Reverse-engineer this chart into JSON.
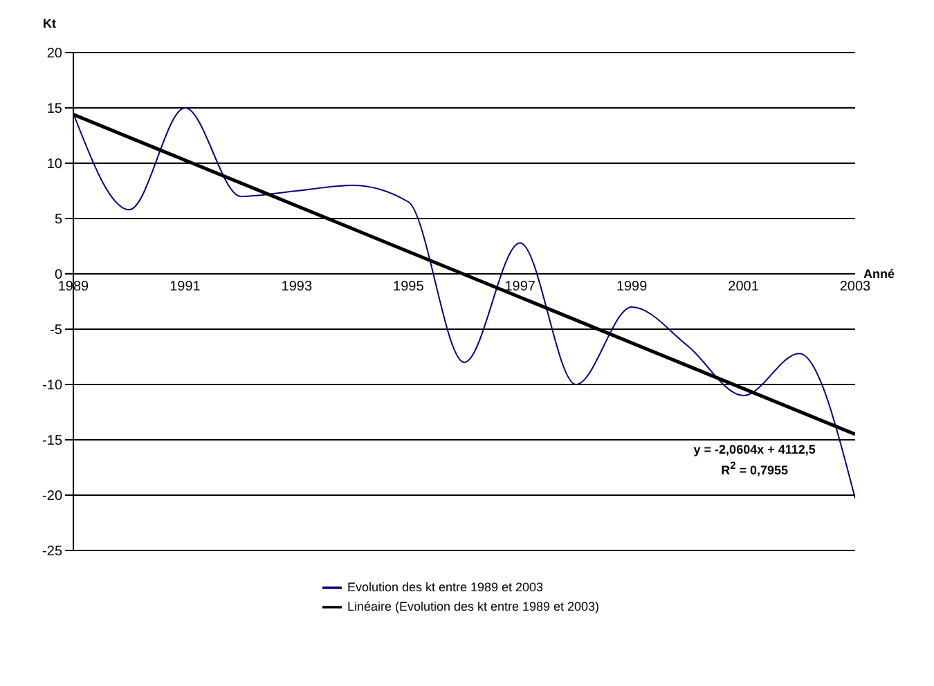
{
  "chart_data": {
    "type": "line",
    "ylabel": "Kt",
    "xlabel": "Anné",
    "x": [
      1989,
      1990,
      1991,
      1992,
      1993,
      1994,
      1995,
      1996,
      1997,
      1998,
      1999,
      2000,
      2001,
      2002,
      2003
    ],
    "series": [
      {
        "name": "Evolution des kt entre 1989 et 2003",
        "color": "#000080",
        "values": [
          14.5,
          5.8,
          15,
          7,
          7.5,
          8,
          6.5,
          -8,
          2.8,
          -10,
          -3,
          -6.5,
          -11,
          -7.2,
          -20.3
        ]
      },
      {
        "name": "Linéaire (Evolution des kt entre 1989 et 2003)",
        "color": "#000000",
        "x": [
          1989,
          2003
        ],
        "values": [
          14.4,
          -14.5
        ]
      }
    ],
    "xlim": [
      1989,
      2003
    ],
    "xticks": [
      1989,
      1991,
      1993,
      1995,
      1997,
      1999,
      2001,
      2003
    ],
    "ylim": [
      -25,
      20
    ],
    "yticks": [
      -25,
      -20,
      -15,
      -10,
      -5,
      0,
      5,
      10,
      15,
      20
    ],
    "grid": "y",
    "legend": "bottom",
    "marker": "none",
    "line_style": "solid",
    "annotations": [
      "y = -2,0604x + 4112,5",
      "R$^{2}$ = 0,7955"
    ]
  }
}
